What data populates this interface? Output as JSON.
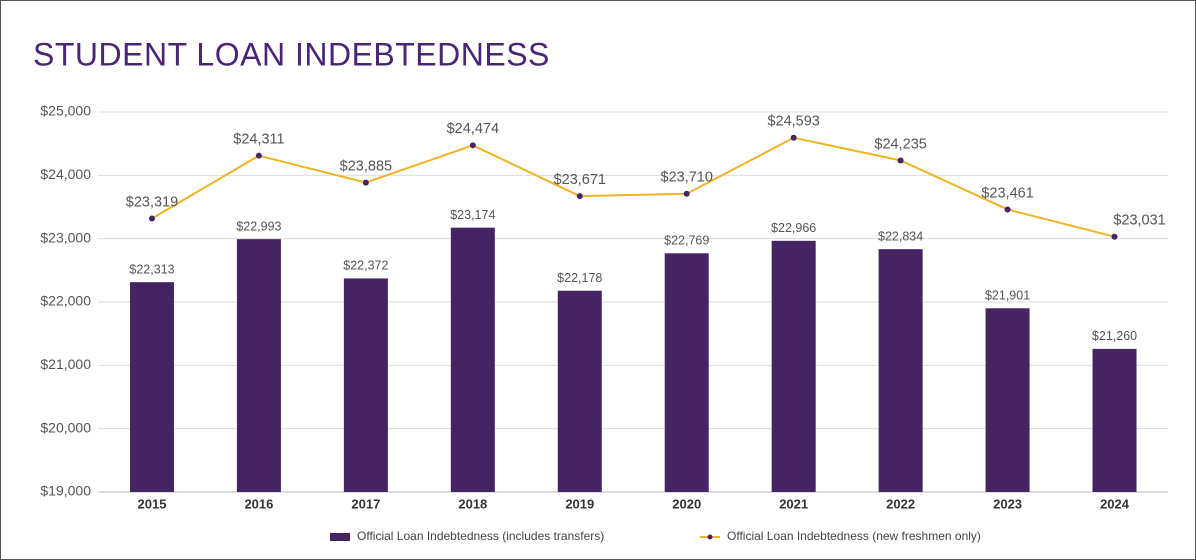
{
  "chart_data": {
    "type": "bar",
    "title": "STUDENT LOAN INDEBTEDNESS",
    "categories": [
      "2015",
      "2016",
      "2017",
      "2018",
      "2019",
      "2020",
      "2021",
      "2022",
      "2023",
      "2024"
    ],
    "series": [
      {
        "name": "Official Loan Indebtedness (includes transfers)",
        "type": "bar",
        "color": "#452463",
        "values": [
          22313,
          22993,
          22372,
          23174,
          22178,
          22769,
          22966,
          22834,
          21901,
          21260
        ],
        "value_labels": [
          "$22,313",
          "$22,993",
          "$22,372",
          "$23,174",
          "$22,178",
          "$22,769",
          "$22,966",
          "$22,834",
          "$21,901",
          "$21,260"
        ]
      },
      {
        "name": "Official Loan Indebtedness (new freshmen only)",
        "type": "line",
        "color": "#f0b323",
        "marker_color": "#452463",
        "values": [
          23319,
          24311,
          23885,
          24474,
          23671,
          23710,
          24593,
          24235,
          23461,
          23031
        ],
        "value_labels": [
          "$23,319",
          "$24,311",
          "$23,885",
          "$24,474",
          "$23,671",
          "$23,710",
          "$24,593",
          "$24,235",
          "$23,461",
          "$23,031"
        ]
      }
    ],
    "ylim": [
      19000,
      25000
    ],
    "yticks": [
      {
        "value": 19000,
        "label": "$19,000"
      },
      {
        "value": 20000,
        "label": "$20,000"
      },
      {
        "value": 21000,
        "label": "$21,000"
      },
      {
        "value": 22000,
        "label": "$22,000"
      },
      {
        "value": 23000,
        "label": "$23,000"
      },
      {
        "value": 24000,
        "label": "$24,000"
      },
      {
        "value": 25000,
        "label": "$25,000"
      }
    ],
    "grid": true,
    "legend": "bottom"
  }
}
